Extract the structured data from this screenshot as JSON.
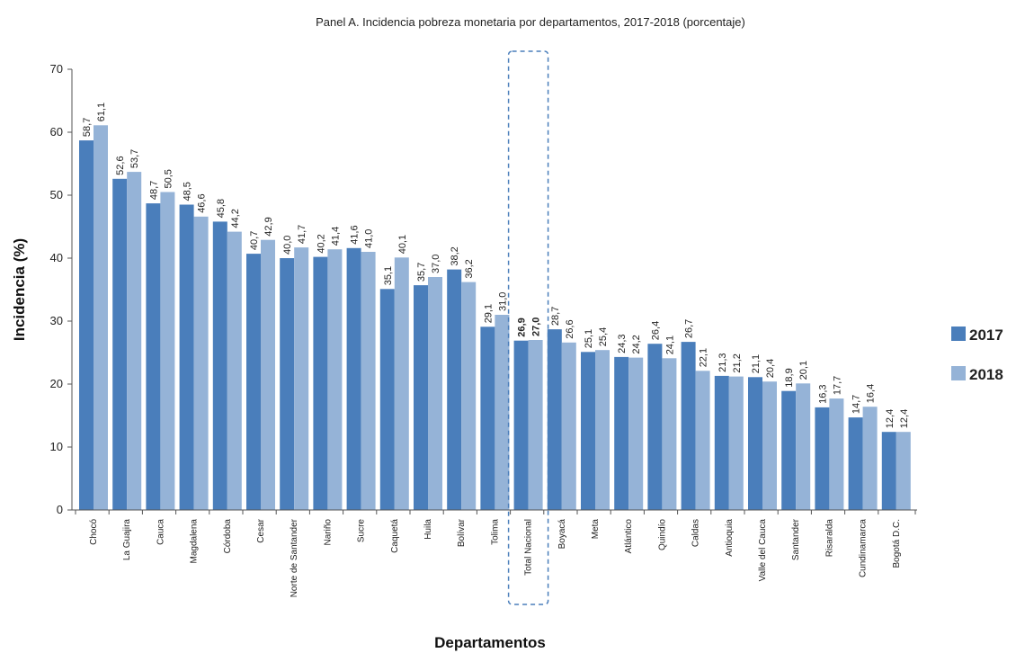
{
  "chart_data": {
    "type": "bar",
    "title": "Panel A. Incidencia pobreza monetaria por departamentos, 2017-2018 (porcentaje)",
    "xlabel": "Departamentos",
    "ylabel": "Incidencia (%)",
    "ylim": [
      0,
      70
    ],
    "yticks": [
      0,
      10,
      20,
      30,
      40,
      50,
      60,
      70
    ],
    "grid": false,
    "legend_position": "right",
    "highlighted_category": "Total Nacional",
    "categories": [
      "Chocó",
      "La Guajira",
      "Cauca",
      "Magdalena",
      "Córdoba",
      "Cesar",
      "Norte de Santander",
      "Nariño",
      "Sucre",
      "Caquetá",
      "Huila",
      "Bolívar",
      "Tolima",
      "Total Nacional",
      "Boyacá",
      "Meta",
      "Atlántico",
      "Quindío",
      "Caldas",
      "Antioquia",
      "Valle del Cauca",
      "Santander",
      "Risaralda",
      "Cundinamarca",
      "Bogotá D.C."
    ],
    "series": [
      {
        "name": "2017",
        "color": "#4a7ebb",
        "values": [
          58.7,
          52.6,
          48.7,
          48.5,
          45.8,
          40.7,
          40.0,
          40.2,
          41.6,
          35.1,
          35.7,
          38.2,
          29.1,
          26.9,
          28.7,
          25.1,
          24.3,
          26.4,
          26.7,
          21.3,
          21.1,
          18.9,
          16.3,
          14.7,
          12.4
        ],
        "labels": [
          "58,7",
          "52,6",
          "48,7",
          "48,5",
          "45,8",
          "40,7",
          "40,0",
          "40,2",
          "41,6",
          "35,1",
          "35,7",
          "38,2",
          "29,1",
          "26,9",
          "28,7",
          "25,1",
          "24,3",
          "26,4",
          "26,7",
          "21,3",
          "21,1",
          "18,9",
          "16,3",
          "14,7",
          "12,4"
        ]
      },
      {
        "name": "2018",
        "color": "#95b3d7",
        "values": [
          61.1,
          53.7,
          50.5,
          46.6,
          44.2,
          42.9,
          41.7,
          41.4,
          41.0,
          40.1,
          37.0,
          36.2,
          31.0,
          27.0,
          26.6,
          25.4,
          24.2,
          24.1,
          22.1,
          21.2,
          20.4,
          20.1,
          17.7,
          16.4,
          12.4
        ],
        "labels": [
          "61,1",
          "53,7",
          "50,5",
          "46,6",
          "44,2",
          "42,9",
          "41,7",
          "41,4",
          "41,0",
          "40,1",
          "37,0",
          "36,2",
          "31,0",
          "27,0",
          "26,6",
          "25,4",
          "24,2",
          "24,1",
          "22,1",
          "21,2",
          "20,4",
          "20,1",
          "17,7",
          "16,4",
          "12,4"
        ]
      }
    ]
  }
}
